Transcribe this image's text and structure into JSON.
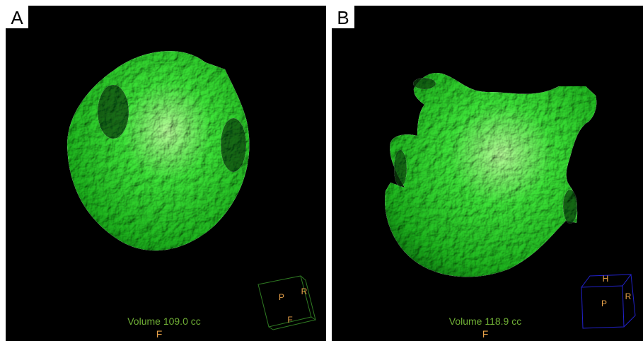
{
  "panels": [
    {
      "label": "A",
      "volume": "Volume 109.0 cc",
      "orientation": "F",
      "cube_labels": [
        "P",
        "R",
        "F"
      ]
    },
    {
      "label": "B",
      "volume": "Volume 118.9 cc",
      "orientation": "F",
      "cube_labels": [
        "H",
        "P",
        "R"
      ]
    }
  ]
}
